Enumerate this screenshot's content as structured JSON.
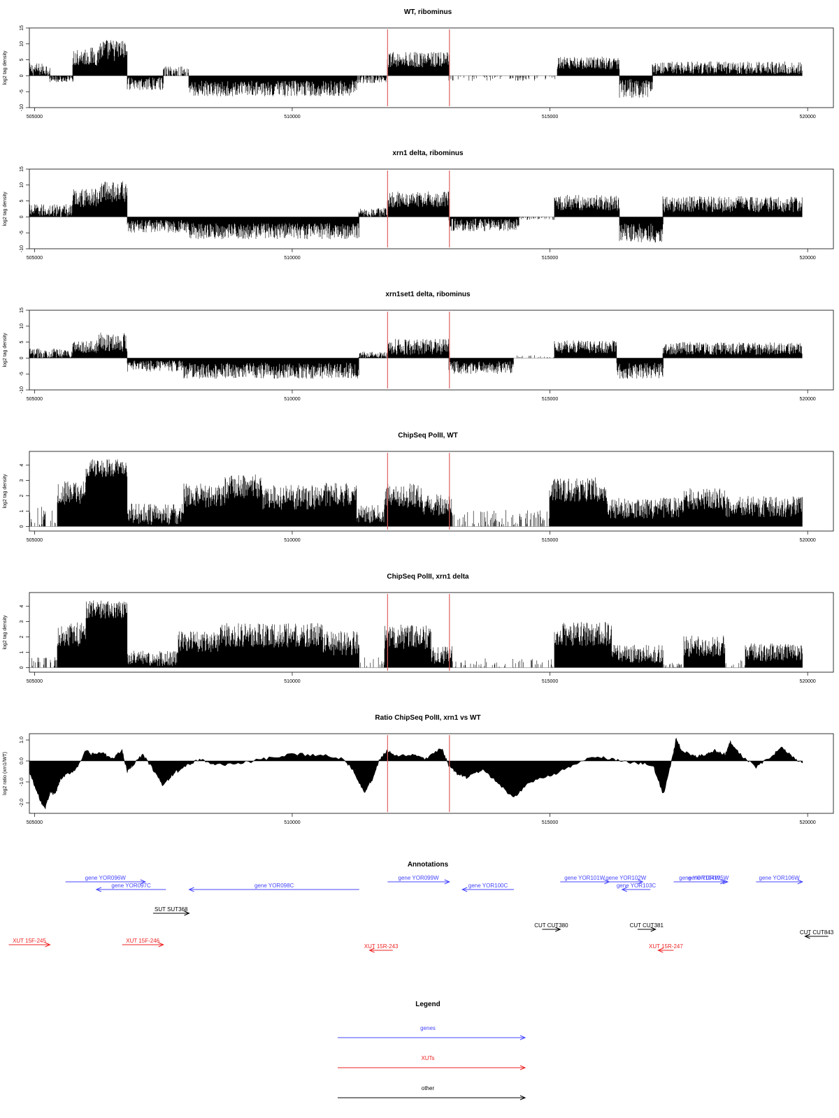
{
  "chart_data": [
    {
      "type": "bar",
      "title": "WT, ribominus",
      "ylabel": "log2 tag density",
      "xlim": [
        504900,
        520500
      ],
      "ylim": [
        -10,
        15
      ],
      "yticks": [
        -10,
        -5,
        0,
        5,
        10,
        15
      ],
      "xticks": [
        505000,
        510000,
        515000,
        520000
      ],
      "markers": [
        511850,
        513050
      ],
      "marker_color": "#e06060",
      "segments": [
        {
          "x": [
            504900,
            505300
          ],
          "v": 2,
          "a": 2,
          "sign": 1
        },
        {
          "x": [
            505300,
            505750
          ],
          "v": 1,
          "a": 1,
          "sign": -1
        },
        {
          "x": [
            505750,
            506250
          ],
          "v": 6,
          "a": 3,
          "sign": 1
        },
        {
          "x": [
            506250,
            506800
          ],
          "v": 8,
          "a": 3.5,
          "sign": 1
        },
        {
          "x": [
            506800,
            507500
          ],
          "v": 2.5,
          "a": 2,
          "sign": -1
        },
        {
          "x": [
            507500,
            508000
          ],
          "v": 1,
          "a": 2,
          "sign": 1
        },
        {
          "x": [
            508000,
            511250
          ],
          "v": 4,
          "a": 2.5,
          "sign": -1
        },
        {
          "x": [
            511250,
            511850
          ],
          "v": 1,
          "a": 1.5,
          "sign": -1
        },
        {
          "x": [
            511850,
            513050
          ],
          "v": 5,
          "a": 2.5,
          "sign": 1
        },
        {
          "x": [
            513050,
            515150
          ],
          "v": 0.6,
          "a": 1,
          "sign": -1,
          "sparse": true
        },
        {
          "x": [
            515150,
            516350
          ],
          "v": 4,
          "a": 2,
          "sign": 1
        },
        {
          "x": [
            516350,
            517000
          ],
          "v": 4,
          "a": 3,
          "sign": -1
        },
        {
          "x": [
            517000,
            519900
          ],
          "v": 2.5,
          "a": 2,
          "sign": 1
        }
      ]
    },
    {
      "type": "bar",
      "title": "xrn1 delta, ribominus",
      "ylabel": "log2 tag density",
      "xlim": [
        504900,
        520500
      ],
      "ylim": [
        -10,
        15
      ],
      "yticks": [
        -10,
        -5,
        0,
        5,
        10,
        15
      ],
      "xticks": [
        505000,
        510000,
        515000,
        520000
      ],
      "markers": [
        511850,
        513050
      ],
      "marker_color": "#e06060",
      "segments": [
        {
          "x": [
            504900,
            505750
          ],
          "v": 2,
          "a": 2,
          "sign": 1
        },
        {
          "x": [
            505750,
            506250
          ],
          "v": 6,
          "a": 3,
          "sign": 1
        },
        {
          "x": [
            506250,
            506800
          ],
          "v": 8,
          "a": 3.5,
          "sign": 1
        },
        {
          "x": [
            506800,
            508000
          ],
          "v": 3,
          "a": 2,
          "sign": -1
        },
        {
          "x": [
            508000,
            511300
          ],
          "v": 4.5,
          "a": 2.5,
          "sign": -1
        },
        {
          "x": [
            511300,
            511850
          ],
          "v": 1.5,
          "a": 1.5,
          "sign": 1
        },
        {
          "x": [
            511850,
            513050
          ],
          "v": 5.5,
          "a": 2.5,
          "sign": 1
        },
        {
          "x": [
            513050,
            514400
          ],
          "v": 2.5,
          "a": 2,
          "sign": -1
        },
        {
          "x": [
            514400,
            515100
          ],
          "v": 0.5,
          "a": 0.5,
          "sign": -1,
          "sparse": true
        },
        {
          "x": [
            515100,
            516350
          ],
          "v": 4.5,
          "a": 2.5,
          "sign": 1
        },
        {
          "x": [
            516350,
            517200
          ],
          "v": 5,
          "a": 3,
          "sign": -1
        },
        {
          "x": [
            517200,
            519900
          ],
          "v": 4,
          "a": 2.5,
          "sign": 1
        }
      ]
    },
    {
      "type": "bar",
      "title": "xrn1set1 delta, ribominus",
      "ylabel": "log2 tag density",
      "xlim": [
        504900,
        520500
      ],
      "ylim": [
        -10,
        15
      ],
      "yticks": [
        -10,
        -5,
        0,
        5,
        10,
        15
      ],
      "xticks": [
        505000,
        510000,
        515000,
        520000
      ],
      "markers": [
        511850,
        513050
      ],
      "marker_color": "#e06060",
      "segments": [
        {
          "x": [
            504900,
            505750
          ],
          "v": 1.5,
          "a": 1.5,
          "sign": 1
        },
        {
          "x": [
            505750,
            506250
          ],
          "v": 3.5,
          "a": 2,
          "sign": 1
        },
        {
          "x": [
            506250,
            506800
          ],
          "v": 5,
          "a": 3,
          "sign": 1
        },
        {
          "x": [
            506800,
            507900
          ],
          "v": 2.5,
          "a": 1.8,
          "sign": -1
        },
        {
          "x": [
            507900,
            511300
          ],
          "v": 4,
          "a": 2.5,
          "sign": -1
        },
        {
          "x": [
            511300,
            511850
          ],
          "v": 1,
          "a": 1,
          "sign": 1
        },
        {
          "x": [
            511850,
            513050
          ],
          "v": 3.5,
          "a": 2.5,
          "sign": 1
        },
        {
          "x": [
            513050,
            514300
          ],
          "v": 3,
          "a": 2,
          "sign": -1
        },
        {
          "x": [
            514300,
            515100
          ],
          "v": 0.5,
          "a": 0.5,
          "sign": 1,
          "sparse": true
        },
        {
          "x": [
            515100,
            516300
          ],
          "v": 3.5,
          "a": 2,
          "sign": 1
        },
        {
          "x": [
            516300,
            517200
          ],
          "v": 4,
          "a": 2.5,
          "sign": -1
        },
        {
          "x": [
            517200,
            519900
          ],
          "v": 3,
          "a": 2,
          "sign": 1
        }
      ]
    },
    {
      "type": "bar",
      "title": "ChipSeq PolII, WT",
      "ylabel": "log2 tag density",
      "xlim": [
        504900,
        520500
      ],
      "ylim": [
        -0.3,
        4.9
      ],
      "yticks": [
        0,
        1,
        2,
        3,
        4
      ],
      "xticks": [
        505000,
        510000,
        515000,
        520000
      ],
      "markers": [
        511850,
        513050
      ],
      "marker_color": "#e06060",
      "segments": [
        {
          "x": [
            504900,
            505450
          ],
          "v": 0.6,
          "a": 0.8,
          "sign": 1,
          "sparse": true
        },
        {
          "x": [
            505450,
            506000
          ],
          "v": 2.2,
          "a": 0.8,
          "sign": 1
        },
        {
          "x": [
            506000,
            506800
          ],
          "v": 3.8,
          "a": 0.6,
          "sign": 1
        },
        {
          "x": [
            506800,
            507900
          ],
          "v": 0.8,
          "a": 0.7,
          "sign": 1
        },
        {
          "x": [
            507900,
            508700
          ],
          "v": 2,
          "a": 0.8,
          "sign": 1
        },
        {
          "x": [
            508700,
            509400
          ],
          "v": 2.6,
          "a": 0.8,
          "sign": 1
        },
        {
          "x": [
            509400,
            510500
          ],
          "v": 1.9,
          "a": 0.8,
          "sign": 1
        },
        {
          "x": [
            510500,
            511250
          ],
          "v": 2.1,
          "a": 0.8,
          "sign": 1
        },
        {
          "x": [
            511250,
            511800
          ],
          "v": 0.8,
          "a": 0.6,
          "sign": 1
        },
        {
          "x": [
            511800,
            512500
          ],
          "v": 2,
          "a": 0.8,
          "sign": 1
        },
        {
          "x": [
            512500,
            513100
          ],
          "v": 1.4,
          "a": 0.7,
          "sign": 1
        },
        {
          "x": [
            513100,
            515000
          ],
          "v": 0.5,
          "a": 0.6,
          "sign": 1,
          "sparse": true
        },
        {
          "x": [
            515000,
            516100
          ],
          "v": 2.4,
          "a": 0.8,
          "sign": 1
        },
        {
          "x": [
            516100,
            517600
          ],
          "v": 1.2,
          "a": 0.7,
          "sign": 1
        },
        {
          "x": [
            517600,
            518400
          ],
          "v": 1.8,
          "a": 0.7,
          "sign": 1
        },
        {
          "x": [
            518400,
            519900
          ],
          "v": 1.3,
          "a": 0.7,
          "sign": 1
        }
      ]
    },
    {
      "type": "bar",
      "title": "ChipSeq PolII, xrn1 delta",
      "ylabel": "log2 tag density",
      "xlim": [
        504900,
        520500
      ],
      "ylim": [
        -0.3,
        4.9
      ],
      "yticks": [
        0,
        1,
        2,
        3,
        4
      ],
      "xticks": [
        505000,
        510000,
        515000,
        520000
      ],
      "markers": [
        511850,
        513050
      ],
      "marker_color": "#e06060",
      "segments": [
        {
          "x": [
            504900,
            505450
          ],
          "v": 0.3,
          "a": 0.4,
          "sign": 1,
          "sparse": true
        },
        {
          "x": [
            505450,
            506000
          ],
          "v": 2.2,
          "a": 0.8,
          "sign": 1
        },
        {
          "x": [
            506000,
            506800
          ],
          "v": 3.8,
          "a": 0.6,
          "sign": 1
        },
        {
          "x": [
            506800,
            507800
          ],
          "v": 0.6,
          "a": 0.5,
          "sign": 1
        },
        {
          "x": [
            507800,
            508600
          ],
          "v": 1.7,
          "a": 0.7,
          "sign": 1
        },
        {
          "x": [
            508600,
            510600
          ],
          "v": 2.1,
          "a": 0.8,
          "sign": 1
        },
        {
          "x": [
            510600,
            511300
          ],
          "v": 1.6,
          "a": 0.8,
          "sign": 1
        },
        {
          "x": [
            511300,
            511800
          ],
          "v": 0.3,
          "a": 0.4,
          "sign": 1,
          "sparse": true
        },
        {
          "x": [
            511800,
            512700
          ],
          "v": 2,
          "a": 0.8,
          "sign": 1
        },
        {
          "x": [
            512700,
            513100
          ],
          "v": 0.8,
          "a": 0.6,
          "sign": 1
        },
        {
          "x": [
            513100,
            515100
          ],
          "v": 0.2,
          "a": 0.4,
          "sign": 1,
          "sparse": true
        },
        {
          "x": [
            515100,
            516200
          ],
          "v": 2.2,
          "a": 0.8,
          "sign": 1
        },
        {
          "x": [
            516200,
            517200
          ],
          "v": 0.9,
          "a": 0.6,
          "sign": 1
        },
        {
          "x": [
            517200,
            517600
          ],
          "v": 0.1,
          "a": 0.2,
          "sign": 1,
          "sparse": true
        },
        {
          "x": [
            517600,
            518400
          ],
          "v": 1.4,
          "a": 0.7,
          "sign": 1
        },
        {
          "x": [
            518400,
            518800
          ],
          "v": 0.2,
          "a": 0.3,
          "sign": 1,
          "sparse": true
        },
        {
          "x": [
            518800,
            519900
          ],
          "v": 1,
          "a": 0.6,
          "sign": 1
        }
      ]
    },
    {
      "type": "area",
      "title": "Ratio ChipSeq PolII, xrn1 vs WT",
      "ylabel": "log2 ratio (xrn1/WT)",
      "xlim": [
        504900,
        520500
      ],
      "ylim": [
        -2.5,
        1.3
      ],
      "yticks": [
        -2.0,
        -1.0,
        0.0,
        1.0
      ],
      "ytick_labels": [
        "-2.0",
        "-1.0",
        "0.0",
        "1.0"
      ],
      "xticks": [
        505000,
        510000,
        515000,
        520000
      ],
      "markers": [
        511850,
        513050
      ],
      "marker_color": "#e06060",
      "x": [
        504900,
        505000,
        505100,
        505200,
        505300,
        505400,
        505500,
        505600,
        505800,
        506000,
        506100,
        506300,
        506500,
        506700,
        506800,
        506900,
        507100,
        507300,
        507500,
        507700,
        507900,
        508200,
        508500,
        509000,
        509500,
        510000,
        510500,
        511000,
        511200,
        511400,
        511550,
        511700,
        511850,
        512000,
        512300,
        512600,
        512900,
        513050,
        513200,
        513400,
        513700,
        514000,
        514300,
        514600,
        515000,
        515400,
        515800,
        516200,
        516600,
        517000,
        517200,
        517400,
        517450,
        517550,
        517800,
        518000,
        518200,
        518400,
        518500,
        518700,
        519000,
        519300,
        519500,
        519700,
        519900
      ],
      "y": [
        -0.5,
        -1.2,
        -1.8,
        -2.3,
        -1.5,
        -1.6,
        -0.9,
        -0.7,
        -0.4,
        0.5,
        0.3,
        0.4,
        0.1,
        0.5,
        -0.5,
        -0.2,
        0.3,
        -0.4,
        -1.2,
        -0.6,
        -0.3,
        0.1,
        -0.2,
        -0.1,
        0.1,
        0.3,
        0.3,
        0.1,
        -0.5,
        -1.5,
        -0.9,
        0.1,
        0.5,
        0.2,
        0.3,
        0.1,
        0.6,
        -0.3,
        -0.6,
        -0.8,
        -0.4,
        -1.1,
        -1.8,
        -1.0,
        -0.7,
        -0.3,
        0.2,
        0.1,
        -0.1,
        -0.2,
        -1.6,
        0.4,
        1.1,
        0.5,
        0.2,
        0.3,
        0.5,
        0.3,
        0.9,
        0.3,
        -0.3,
        0.2,
        0.7,
        0.2,
        -0.1
      ]
    }
  ],
  "annotations": {
    "title": "Annotations",
    "items": [
      {
        "label": "gene YOR096W",
        "kind": "gene",
        "x1": 505600,
        "x2": 507150,
        "dir": "right",
        "row": 0
      },
      {
        "label": "gene YOR097C",
        "kind": "gene",
        "x1": 506200,
        "x2": 507550,
        "dir": "left",
        "row": 1
      },
      {
        "label": "gene YOR098C",
        "kind": "gene",
        "x1": 508000,
        "x2": 511300,
        "dir": "left",
        "row": 1
      },
      {
        "label": "gene YOR099W",
        "kind": "gene",
        "x1": 511850,
        "x2": 513050,
        "dir": "right",
        "row": 0
      },
      {
        "label": "gene YOR100C",
        "kind": "gene",
        "x1": 513300,
        "x2": 514300,
        "dir": "left",
        "row": 1
      },
      {
        "label": "gene YOR101W",
        "kind": "gene",
        "x1": 515200,
        "x2": 516150,
        "dir": "right",
        "row": 0
      },
      {
        "label": "gene YOR102W",
        "kind": "gene",
        "x1": 516150,
        "x2": 516800,
        "dir": "right",
        "row": 0
      },
      {
        "label": "gene YOR103C",
        "kind": "gene",
        "x1": 516400,
        "x2": 516950,
        "dir": "left",
        "row": 1
      },
      {
        "label": "gene YOR104W",
        "kind": "gene",
        "x1": 517400,
        "x2": 518400,
        "dir": "right",
        "row": 0
      },
      {
        "label": "gene YOR105W",
        "kind": "gene",
        "x1": 517700,
        "x2": 518450,
        "dir": "right",
        "row": 0
      },
      {
        "label": "gene YOR106W",
        "kind": "gene",
        "x1": 519000,
        "x2": 519900,
        "dir": "right",
        "row": 0
      },
      {
        "label": "SUT SUT368",
        "kind": "other",
        "x1": 507300,
        "x2": 508000,
        "dir": "right",
        "row": 2
      },
      {
        "label": "CUT CUT380",
        "kind": "other",
        "x1": 514850,
        "x2": 515200,
        "dir": "right",
        "row": 3
      },
      {
        "label": "CUT CUT381",
        "kind": "other",
        "x1": 516700,
        "x2": 517050,
        "dir": "right",
        "row": 3
      },
      {
        "label": "CUT CUT843",
        "kind": "other",
        "x1": 519950,
        "x2": 520400,
        "dir": "left",
        "row": 4
      },
      {
        "label": "XUT 15F-245",
        "kind": "xut",
        "x1": 504500,
        "x2": 505300,
        "dir": "right",
        "row": 5
      },
      {
        "label": "XUT 15F-246",
        "kind": "xut",
        "x1": 506700,
        "x2": 507500,
        "dir": "right",
        "row": 5
      },
      {
        "label": "XUT 15R-243",
        "kind": "xut",
        "x1": 511500,
        "x2": 511950,
        "dir": "left",
        "row": 6
      },
      {
        "label": "XUT 15R-247",
        "kind": "xut",
        "x1": 517100,
        "x2": 517400,
        "dir": "left",
        "row": 6
      }
    ]
  },
  "legend": {
    "title": "Legend",
    "items": [
      {
        "label": "genes",
        "color": "#4444ff"
      },
      {
        "label": "XUTs",
        "color": "#ee2222"
      },
      {
        "label": "other",
        "color": "#000000"
      }
    ]
  },
  "colors": {
    "gene": "#4444ff",
    "xut": "#ee2222",
    "other": "#000000"
  }
}
